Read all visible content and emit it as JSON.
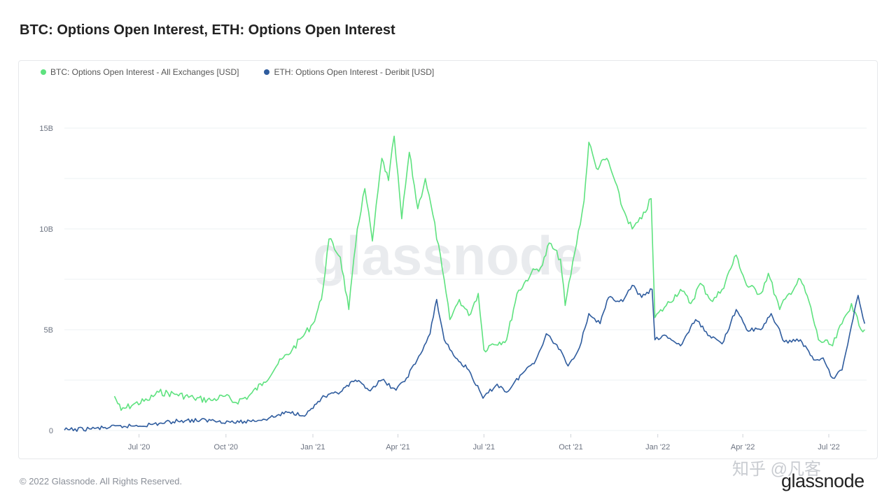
{
  "title": "BTC: Options Open Interest, ETH: Options Open Interest",
  "footer": "© 2022 Glassnode. All Rights Reserved.",
  "brand": "glassnode",
  "chart_watermark": "glassnode",
  "corner_watermark": "知乎 @凡客",
  "colors": {
    "btc": "#5ee27f",
    "eth": "#2f5c9e",
    "grid": "#eef0f3",
    "axis_text": "#6b7280"
  },
  "chart_data": {
    "type": "line",
    "title": "BTC: Options Open Interest, ETH: Options Open Interest",
    "xlabel": "",
    "ylabel": "",
    "ylim": [
      0,
      15
    ],
    "y_unit": "B USD",
    "x_range": [
      "2020-04-13",
      "2022-08-10"
    ],
    "yticks": [
      {
        "v": 0,
        "label": "0"
      },
      {
        "v": 5,
        "label": "5B"
      },
      {
        "v": 10,
        "label": "10B"
      },
      {
        "v": 15,
        "label": "15B"
      }
    ],
    "xticks": [
      {
        "date": "2020-07-01",
        "label": "Jul '20"
      },
      {
        "date": "2020-10-01",
        "label": "Oct '20"
      },
      {
        "date": "2021-01-01",
        "label": "Jan '21"
      },
      {
        "date": "2021-04-01",
        "label": "Apr '21"
      },
      {
        "date": "2021-07-01",
        "label": "Jul '21"
      },
      {
        "date": "2021-10-01",
        "label": "Oct '21"
      },
      {
        "date": "2022-01-01",
        "label": "Jan '22"
      },
      {
        "date": "2022-04-01",
        "label": "Apr '22"
      },
      {
        "date": "2022-07-01",
        "label": "Jul '22"
      }
    ],
    "legend_position": "top-left",
    "grid": true,
    "series": [
      {
        "name": "BTC: Options Open Interest - All Exchanges [USD]",
        "color": "#5ee27f",
        "points": [
          [
            "2020-06-05",
            1.7
          ],
          [
            "2020-06-12",
            1.0
          ],
          [
            "2020-06-25",
            1.3
          ],
          [
            "2020-07-10",
            1.5
          ],
          [
            "2020-07-22",
            1.9
          ],
          [
            "2020-08-10",
            1.8
          ],
          [
            "2020-08-28",
            1.6
          ],
          [
            "2020-09-15",
            1.5
          ],
          [
            "2020-09-30",
            1.7
          ],
          [
            "2020-10-10",
            1.4
          ],
          [
            "2020-10-25",
            1.7
          ],
          [
            "2020-11-10",
            2.4
          ],
          [
            "2020-11-25",
            3.3
          ],
          [
            "2020-12-10",
            4.0
          ],
          [
            "2020-12-20",
            4.6
          ],
          [
            "2021-01-01",
            5.3
          ],
          [
            "2021-01-10",
            6.5
          ],
          [
            "2021-01-18",
            9.5
          ],
          [
            "2021-01-30",
            8.6
          ],
          [
            "2021-02-08",
            6.0
          ],
          [
            "2021-02-17",
            10.0
          ],
          [
            "2021-02-25",
            12.0
          ],
          [
            "2021-03-05",
            9.4
          ],
          [
            "2021-03-15",
            13.5
          ],
          [
            "2021-03-22",
            12.4
          ],
          [
            "2021-03-28",
            14.6
          ],
          [
            "2021-04-05",
            10.5
          ],
          [
            "2021-04-13",
            13.8
          ],
          [
            "2021-04-22",
            11.0
          ],
          [
            "2021-04-30",
            12.5
          ],
          [
            "2021-05-08",
            10.7
          ],
          [
            "2021-05-18",
            8.0
          ],
          [
            "2021-05-26",
            5.5
          ],
          [
            "2021-06-05",
            6.5
          ],
          [
            "2021-06-15",
            5.7
          ],
          [
            "2021-06-25",
            6.8
          ],
          [
            "2021-07-01",
            4.0
          ],
          [
            "2021-07-10",
            4.3
          ],
          [
            "2021-07-25",
            4.5
          ],
          [
            "2021-08-05",
            6.8
          ],
          [
            "2021-08-20",
            7.8
          ],
          [
            "2021-09-01",
            8.2
          ],
          [
            "2021-09-08",
            9.3
          ],
          [
            "2021-09-20",
            8.5
          ],
          [
            "2021-09-25",
            6.2
          ],
          [
            "2021-10-05",
            8.8
          ],
          [
            "2021-10-15",
            11.4
          ],
          [
            "2021-10-20",
            14.3
          ],
          [
            "2021-10-28",
            13.0
          ],
          [
            "2021-11-08",
            13.5
          ],
          [
            "2021-11-15",
            12.6
          ],
          [
            "2021-11-25",
            11.0
          ],
          [
            "2021-12-05",
            10.0
          ],
          [
            "2021-12-15",
            10.5
          ],
          [
            "2021-12-25",
            11.5
          ],
          [
            "2021-12-29",
            5.6
          ],
          [
            "2022-01-10",
            6.2
          ],
          [
            "2022-01-25",
            7.0
          ],
          [
            "2022-02-05",
            6.3
          ],
          [
            "2022-02-15",
            7.3
          ],
          [
            "2022-02-28",
            6.4
          ],
          [
            "2022-03-10",
            7.0
          ],
          [
            "2022-03-25",
            8.7
          ],
          [
            "2022-04-05",
            7.2
          ],
          [
            "2022-04-20",
            6.8
          ],
          [
            "2022-04-28",
            7.8
          ],
          [
            "2022-05-10",
            6.0
          ],
          [
            "2022-05-20",
            6.8
          ],
          [
            "2022-06-01",
            7.5
          ],
          [
            "2022-06-10",
            6.4
          ],
          [
            "2022-06-20",
            4.5
          ],
          [
            "2022-07-05",
            4.2
          ],
          [
            "2022-07-15",
            5.3
          ],
          [
            "2022-07-25",
            6.3
          ],
          [
            "2022-08-02",
            5.2
          ],
          [
            "2022-08-08",
            5.0
          ]
        ]
      },
      {
        "name": "ETH: Options Open Interest - Deribit [USD]",
        "color": "#2f5c9e",
        "points": [
          [
            "2020-04-13",
            0.02
          ],
          [
            "2020-05-15",
            0.1
          ],
          [
            "2020-06-15",
            0.2
          ],
          [
            "2020-07-15",
            0.3
          ],
          [
            "2020-08-15",
            0.5
          ],
          [
            "2020-09-15",
            0.5
          ],
          [
            "2020-10-15",
            0.4
          ],
          [
            "2020-11-15",
            0.6
          ],
          [
            "2020-12-05",
            0.9
          ],
          [
            "2020-12-25",
            0.8
          ],
          [
            "2021-01-10",
            1.6
          ],
          [
            "2021-01-30",
            1.9
          ],
          [
            "2021-02-15",
            2.5
          ],
          [
            "2021-03-01",
            2.0
          ],
          [
            "2021-03-15",
            2.5
          ],
          [
            "2021-03-30",
            2.0
          ],
          [
            "2021-04-10",
            2.6
          ],
          [
            "2021-04-25",
            3.8
          ],
          [
            "2021-05-05",
            4.8
          ],
          [
            "2021-05-12",
            6.5
          ],
          [
            "2021-05-20",
            4.5
          ],
          [
            "2021-06-01",
            3.6
          ],
          [
            "2021-06-15",
            3.0
          ],
          [
            "2021-06-30",
            1.6
          ],
          [
            "2021-07-15",
            2.3
          ],
          [
            "2021-07-25",
            1.9
          ],
          [
            "2021-08-10",
            2.8
          ],
          [
            "2021-08-25",
            3.5
          ],
          [
            "2021-09-05",
            4.8
          ],
          [
            "2021-09-20",
            4.0
          ],
          [
            "2021-09-28",
            3.2
          ],
          [
            "2021-10-10",
            4.1
          ],
          [
            "2021-10-20",
            5.8
          ],
          [
            "2021-11-01",
            5.3
          ],
          [
            "2021-11-10",
            6.6
          ],
          [
            "2021-11-25",
            6.4
          ],
          [
            "2021-12-05",
            7.2
          ],
          [
            "2021-12-15",
            6.6
          ],
          [
            "2021-12-26",
            7.0
          ],
          [
            "2021-12-29",
            4.5
          ],
          [
            "2022-01-10",
            4.7
          ],
          [
            "2022-01-25",
            4.2
          ],
          [
            "2022-02-10",
            5.5
          ],
          [
            "2022-02-25",
            4.7
          ],
          [
            "2022-03-10",
            4.3
          ],
          [
            "2022-03-25",
            6.0
          ],
          [
            "2022-04-05",
            5.0
          ],
          [
            "2022-04-20",
            5.0
          ],
          [
            "2022-05-01",
            5.8
          ],
          [
            "2022-05-15",
            4.4
          ],
          [
            "2022-06-01",
            4.5
          ],
          [
            "2022-06-15",
            3.5
          ],
          [
            "2022-06-25",
            3.6
          ],
          [
            "2022-07-05",
            2.6
          ],
          [
            "2022-07-15",
            3.0
          ],
          [
            "2022-07-25",
            5.2
          ],
          [
            "2022-08-01",
            6.7
          ],
          [
            "2022-08-08",
            5.3
          ]
        ]
      }
    ]
  }
}
